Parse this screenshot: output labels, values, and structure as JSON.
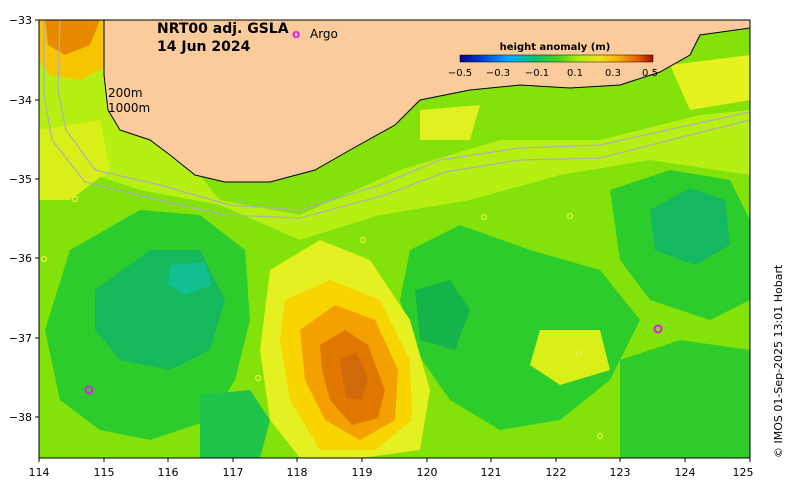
{
  "title": {
    "line1": "NRT00 adj. GSLA",
    "line2": "14 Jun 2024"
  },
  "legend": {
    "argo_symbol": "o",
    "argo_label": "Argo",
    "argo_color": "#e020e0"
  },
  "colorbar": {
    "title": "height anomaly (m)",
    "ticks": [
      "−0.5",
      "−0.3",
      "−0.1",
      "0.1",
      "0.3",
      "0.5"
    ],
    "colors": [
      "#00008b",
      "#0044dd",
      "#00aaff",
      "#00d0a0",
      "#00c060",
      "#40d020",
      "#a0ef10",
      "#e0f020",
      "#ffd000",
      "#f49a00",
      "#e06000",
      "#a01000"
    ]
  },
  "isobaths": {
    "shallow": "200m",
    "deep": "1000m"
  },
  "axes": {
    "x_ticks": [
      "114",
      "115",
      "116",
      "117",
      "118",
      "119",
      "120",
      "121",
      "122",
      "123",
      "124",
      "125"
    ],
    "y_ticks": [
      "−33",
      "−34",
      "−35",
      "−36",
      "−37",
      "−38"
    ]
  },
  "credit": "© IMOS 01-Sep-2025 13:01 Hobart",
  "colors": {
    "land": "#fbcb9b",
    "background": "#82e20a",
    "coastline": "#000000",
    "isobath": "#b0b0b0"
  }
}
